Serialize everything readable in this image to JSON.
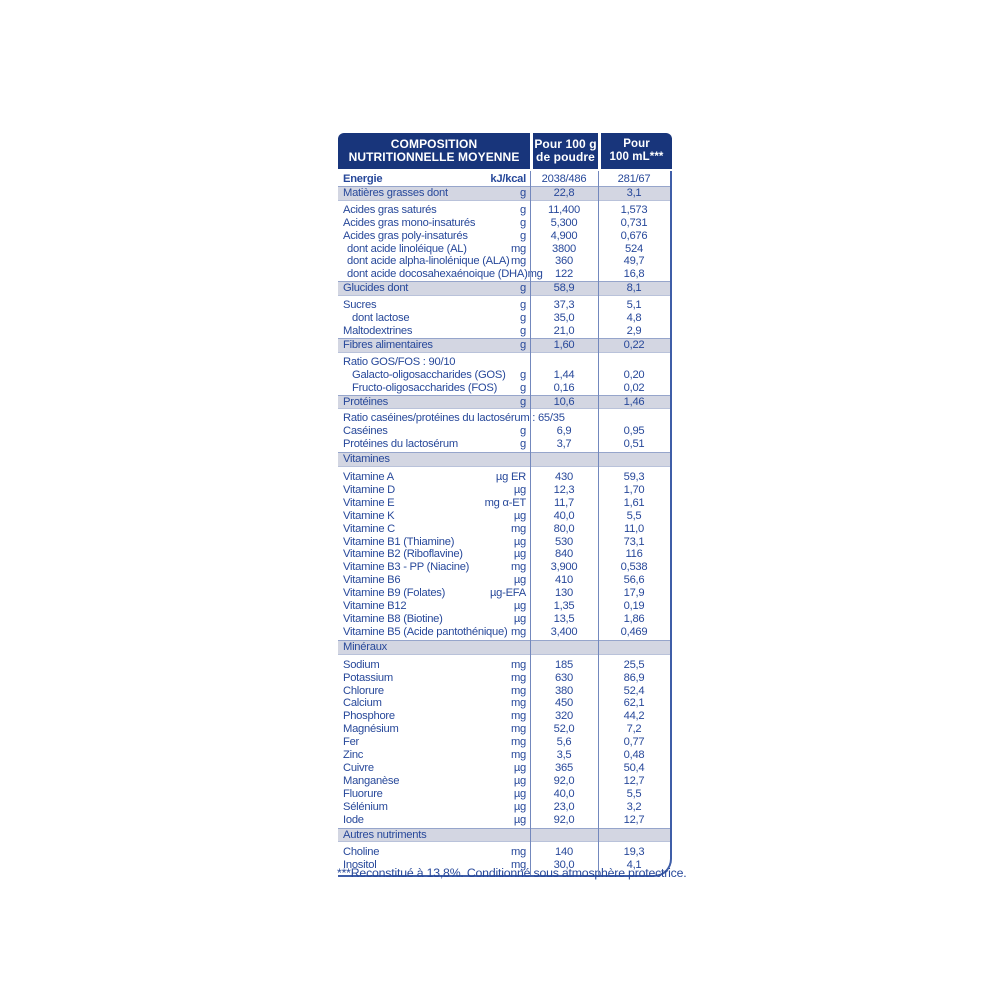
{
  "header": {
    "title_line1": "COMPOSITION",
    "title_line2": "NUTRITIONNELLE MOYENNE",
    "col_100g": {
      "line1": "Pour 100 g",
      "line2": "de poudre"
    },
    "col_100ml": {
      "line1": "Pour",
      "line2": "100 mL***"
    }
  },
  "rows": [
    {
      "label": "Energie",
      "unit": "kJ/kcal",
      "v100g": "2038/486",
      "v100ml": "281/67",
      "style": "bold"
    },
    {
      "label": "Matières grasses dont",
      "unit": "g",
      "v100g": "22,8",
      "v100ml": "3,1",
      "style": "shaded"
    },
    {
      "label": "Acides gras saturés",
      "unit": "g",
      "v100g": "11,400",
      "v100ml": "1,573"
    },
    {
      "label": "Acides gras mono-insaturés",
      "unit": "g",
      "v100g": "5,300",
      "v100ml": "0,731"
    },
    {
      "label": "Acides gras poly-insaturés",
      "unit": "g",
      "v100g": "4,900",
      "v100ml": "0,676"
    },
    {
      "label": "dont acide linoléique (AL)",
      "unit": "mg",
      "v100g": "3800",
      "v100ml": "524",
      "indent": 1
    },
    {
      "label": "dont acide alpha-linolénique (ALA)",
      "unit": "mg",
      "v100g": "360",
      "v100ml": "49,7",
      "indent": 1
    },
    {
      "label": "dont acide docosahexaénoique (DHA)",
      "unit": "mg",
      "v100g": "122",
      "v100ml": "16,8",
      "indent": 1
    },
    {
      "label": "Glucides dont",
      "unit": "g",
      "v100g": "58,9",
      "v100ml": "8,1",
      "style": "shaded"
    },
    {
      "label": "Sucres",
      "unit": "g",
      "v100g": "37,3",
      "v100ml": "5,1"
    },
    {
      "label": "dont lactose",
      "unit": "g",
      "v100g": "35,0",
      "v100ml": "4,8",
      "indent": 2
    },
    {
      "label": "Maltodextrines",
      "unit": "g",
      "v100g": "21,0",
      "v100ml": "2,9"
    },
    {
      "label": "Fibres alimentaires",
      "unit": "g",
      "v100g": "1,60",
      "v100ml": "0,22",
      "style": "shaded"
    },
    {
      "label": "Ratio GOS/FOS : 90/10",
      "style": "fullwidth"
    },
    {
      "label": "Galacto-oligosaccharides (GOS)",
      "unit": "g",
      "v100g": "1,44",
      "v100ml": "0,20",
      "indent": 2
    },
    {
      "label": "Fructo-oligosaccharides (FOS)",
      "unit": "g",
      "v100g": "0,16",
      "v100ml": "0,02",
      "indent": 2
    },
    {
      "label": "Protéines",
      "unit": "g",
      "v100g": "10,6",
      "v100ml": "1,46",
      "style": "shaded"
    },
    {
      "label": "Ratio caséines/protéines du lactosérum : 65/35",
      "style": "fullwidth"
    },
    {
      "label": "Caséines",
      "unit": "g",
      "v100g": "6,9",
      "v100ml": "0,95"
    },
    {
      "label": "Protéines du lactosérum",
      "unit": "g",
      "v100g": "3,7",
      "v100ml": "0,51"
    },
    {
      "label": "Vitamines",
      "style": "section"
    },
    {
      "label": "Vitamine A",
      "unit": "µg ER",
      "v100g": "430",
      "v100ml": "59,3"
    },
    {
      "label": "Vitamine D",
      "unit": "µg",
      "v100g": "12,3",
      "v100ml": "1,70"
    },
    {
      "label": "Vitamine E",
      "unit": "mg α-ET",
      "v100g": "11,7",
      "v100ml": "1,61"
    },
    {
      "label": "Vitamine K",
      "unit": "µg",
      "v100g": "40,0",
      "v100ml": "5,5"
    },
    {
      "label": "Vitamine C",
      "unit": "mg",
      "v100g": "80,0",
      "v100ml": "11,0"
    },
    {
      "label": "Vitamine B1 (Thiamine)",
      "unit": "µg",
      "v100g": "530",
      "v100ml": "73,1"
    },
    {
      "label": "Vitamine B2 (Riboflavine)",
      "unit": "µg",
      "v100g": "840",
      "v100ml": "116"
    },
    {
      "label": "Vitamine B3 - PP (Niacine)",
      "unit": "mg",
      "v100g": "3,900",
      "v100ml": "0,538"
    },
    {
      "label": "Vitamine B6",
      "unit": "µg",
      "v100g": "410",
      "v100ml": "56,6"
    },
    {
      "label": "Vitamine B9 (Folates)",
      "unit": "µg-EFA",
      "v100g": "130",
      "v100ml": "17,9"
    },
    {
      "label": "Vitamine B12",
      "unit": "µg",
      "v100g": "1,35",
      "v100ml": "0,19"
    },
    {
      "label": "Vitamine B8 (Biotine)",
      "unit": "µg",
      "v100g": "13,5",
      "v100ml": "1,86"
    },
    {
      "label": "Vitamine B5 (Acide pantothénique)",
      "unit": "mg",
      "v100g": "3,400",
      "v100ml": "0,469"
    },
    {
      "label": "Minéraux",
      "style": "section"
    },
    {
      "label": "Sodium",
      "unit": "mg",
      "v100g": "185",
      "v100ml": "25,5"
    },
    {
      "label": "Potassium",
      "unit": "mg",
      "v100g": "630",
      "v100ml": "86,9"
    },
    {
      "label": "Chlorure",
      "unit": "mg",
      "v100g": "380",
      "v100ml": "52,4"
    },
    {
      "label": "Calcium",
      "unit": "mg",
      "v100g": "450",
      "v100ml": "62,1"
    },
    {
      "label": "Phosphore",
      "unit": "mg",
      "v100g": "320",
      "v100ml": "44,2"
    },
    {
      "label": "Magnésium",
      "unit": "mg",
      "v100g": "52,0",
      "v100ml": "7,2"
    },
    {
      "label": "Fer",
      "unit": "mg",
      "v100g": "5,6",
      "v100ml": "0,77"
    },
    {
      "label": "Zinc",
      "unit": "mg",
      "v100g": "3,5",
      "v100ml": "0,48"
    },
    {
      "label": "Cuivre",
      "unit": "µg",
      "v100g": "365",
      "v100ml": "50,4"
    },
    {
      "label": "Manganèse",
      "unit": "µg",
      "v100g": "92,0",
      "v100ml": "12,7"
    },
    {
      "label": "Fluorure",
      "unit": "µg",
      "v100g": "40,0",
      "v100ml": "5,5"
    },
    {
      "label": "Sélénium",
      "unit": "µg",
      "v100g": "23,0",
      "v100ml": "3,2"
    },
    {
      "label": "Iode",
      "unit": "µg",
      "v100g": "92,0",
      "v100ml": "12,7"
    },
    {
      "label": "Autres nutriments",
      "style": "section"
    },
    {
      "label": "Choline",
      "unit": "mg",
      "v100g": "140",
      "v100ml": "19,3"
    },
    {
      "label": "Inositol",
      "unit": "mg",
      "v100g": "30,0",
      "v100ml": "4,1"
    }
  ],
  "footnote": "***Reconstitué à 13,8%. Conditionné sous atmosphère protectrice.",
  "colors": {
    "header_bg": "#18357b",
    "text": "#27489a",
    "band": "#d3d6e2",
    "line": "#3f5ea8",
    "page_bg": "#ffffff"
  }
}
